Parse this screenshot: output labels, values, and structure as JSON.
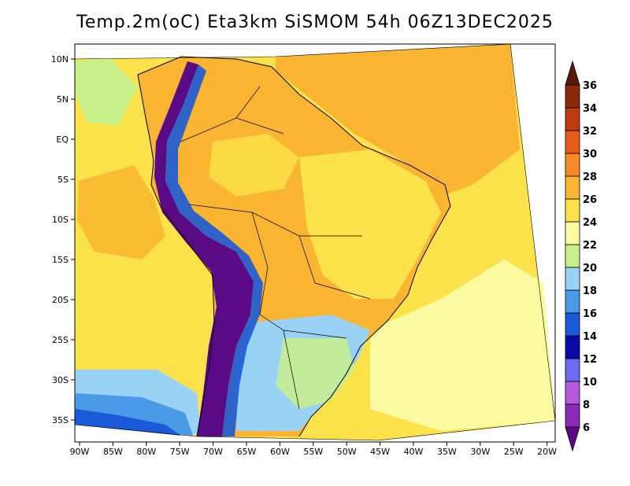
{
  "title": "Temp.2m(oC) Eta3km SiSMOM 54h 06Z13DEC2025",
  "lat_ticks": [
    "10N",
    "5N",
    "EQ",
    "5S",
    "10S",
    "15S",
    "20S",
    "25S",
    "30S",
    "35S"
  ],
  "lon_ticks": [
    "90W",
    "85W",
    "80W",
    "75W",
    "70W",
    "65W",
    "60W",
    "55W",
    "50W",
    "45W",
    "40W",
    "35W",
    "30W",
    "25W",
    "20W"
  ],
  "colorbar": {
    "levels": [
      "6",
      "8",
      "10",
      "12",
      "14",
      "16",
      "18",
      "20",
      "22",
      "24",
      "26",
      "28",
      "30",
      "32",
      "34",
      "36"
    ],
    "colors": [
      "#5a0a84",
      "#8a2bb8",
      "#b45ad8",
      "#6a6af2",
      "#0a0aa8",
      "#1a5ad8",
      "#4a9ae8",
      "#9ad2f6",
      "#c8f08a",
      "#fafaa0",
      "#fbe24a",
      "#f9b431",
      "#f78a22",
      "#e85a1a",
      "#c03a10",
      "#8a2a0a",
      "#5a1a0a"
    ]
  },
  "colors": {
    "land_warm": "#f9b431",
    "land_mild": "#fbe24a",
    "ocean_main": "#fbe24a",
    "ocean_warm_east": "#f9b431",
    "ocean_cool_south": "#fafaa0",
    "ocean_cold": "#4a9ae8",
    "andes": "#5a0a84"
  }
}
